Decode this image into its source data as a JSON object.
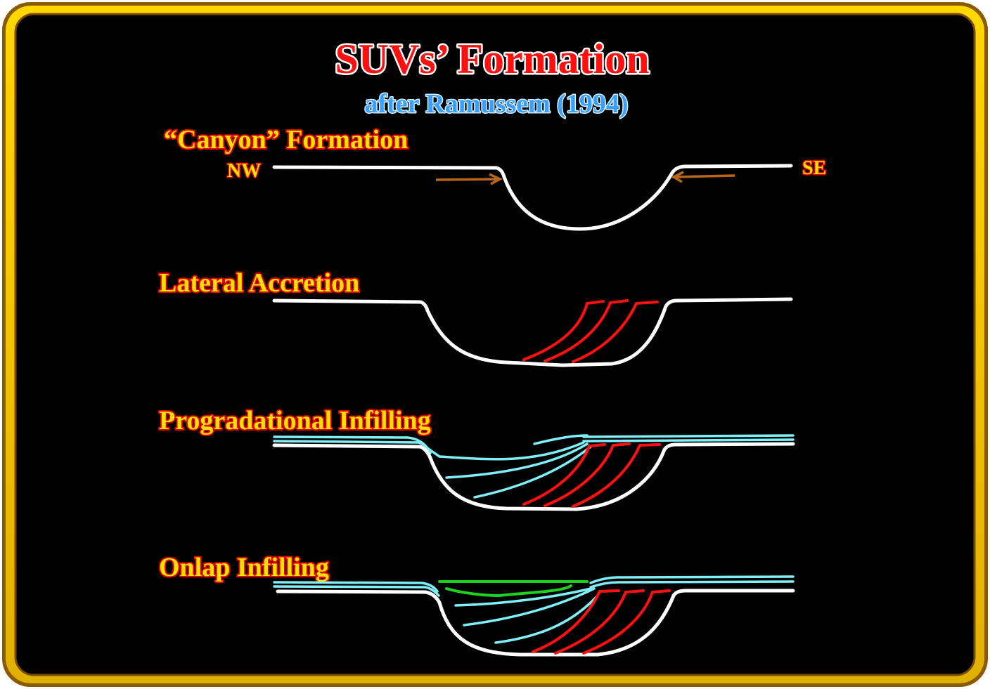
{
  "title": "SUVs’ Formation",
  "subtitle": "after Ramussem (1994)",
  "panels": [
    {
      "label": "“Canyon” Formation",
      "left": "NW",
      "right": "SE"
    },
    {
      "label": "Lateral Accretion"
    },
    {
      "label": "Progradational Infilling"
    },
    {
      "label": "Onlap Infilling"
    }
  ]
}
